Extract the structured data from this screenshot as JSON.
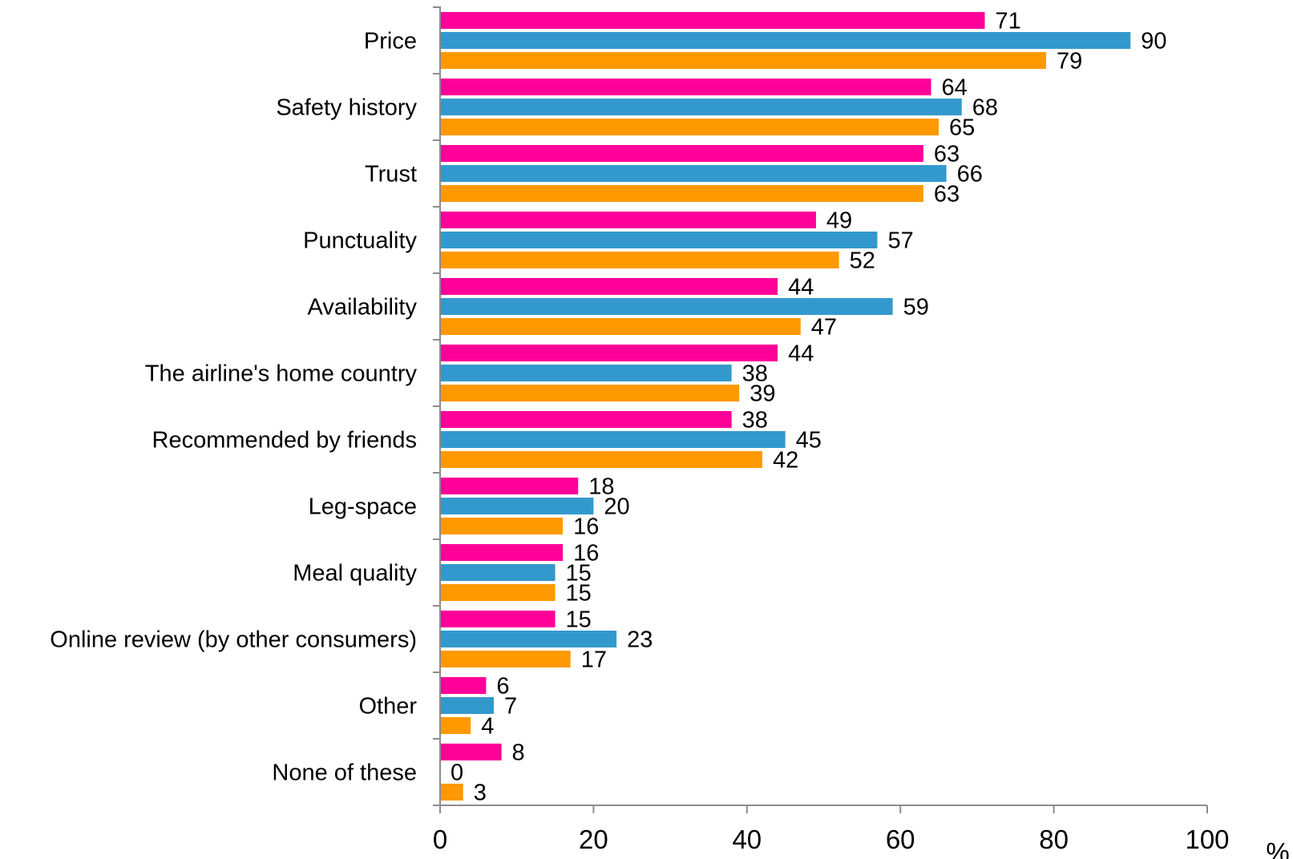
{
  "chart_data": {
    "type": "bar",
    "orientation": "horizontal",
    "categories": [
      "Price",
      "Safety history",
      "Trust",
      "Punctuality",
      "Availability",
      "The airline's home country",
      "Recommended by friends",
      "Leg-space",
      "Meal quality",
      "Online review (by other consumers)",
      "Other",
      "None of these"
    ],
    "series": [
      {
        "color": "#ff0099",
        "values": [
          71,
          64,
          63,
          49,
          44,
          44,
          38,
          18,
          16,
          15,
          6,
          8
        ]
      },
      {
        "color": "#3399cc",
        "values": [
          90,
          68,
          66,
          57,
          59,
          38,
          45,
          20,
          15,
          23,
          7,
          0
        ]
      },
      {
        "color": "#ff9900",
        "values": [
          79,
          65,
          63,
          52,
          47,
          39,
          42,
          16,
          15,
          17,
          4,
          3
        ]
      }
    ],
    "xlim": [
      0,
      100
    ],
    "xticks": [
      "0",
      "20",
      "40",
      "60",
      "80",
      "100"
    ],
    "xunit": "%",
    "title": "",
    "xlabel": "",
    "ylabel": "",
    "legend": "none",
    "grid": false
  }
}
